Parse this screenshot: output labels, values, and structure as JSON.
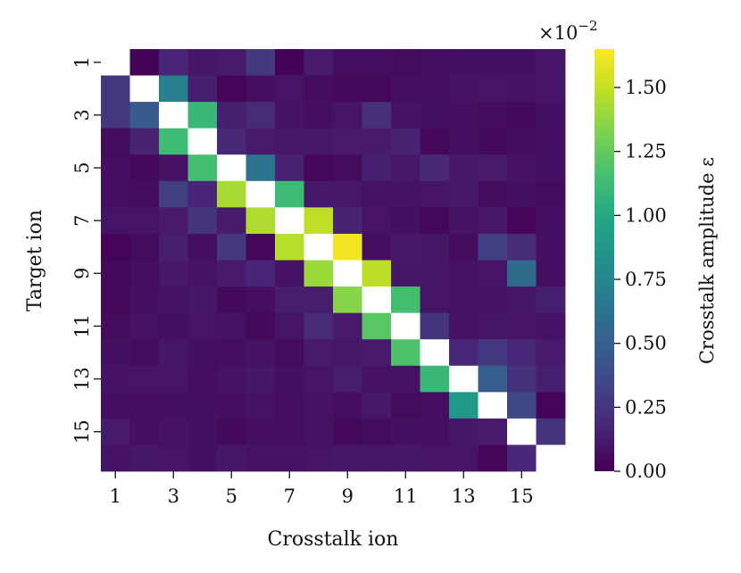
{
  "chart_data": {
    "type": "heatmap",
    "xlabel": "Crosstalk ion",
    "ylabel": "Target ion",
    "x_tick_labels": [
      "1",
      "3",
      "5",
      "7",
      "9",
      "11",
      "13",
      "15"
    ],
    "y_tick_labels": [
      "1",
      "3",
      "5",
      "7",
      "9",
      "11",
      "13",
      "15"
    ],
    "colorbar": {
      "label": "Crosstalk amplitude ε",
      "multiplier_base": "×10",
      "multiplier_exponent": "−2",
      "range": [
        0,
        1.65
      ],
      "colormap": "viridis",
      "ticks": [
        {
          "value": 0.0,
          "label": "0.00"
        },
        {
          "value": 0.25,
          "label": "0.25"
        },
        {
          "value": 0.5,
          "label": "0.50"
        },
        {
          "value": 0.75,
          "label": "0.75"
        },
        {
          "value": 1.0,
          "label": "1.00"
        },
        {
          "value": 1.25,
          "label": "1.25"
        },
        {
          "value": 1.5,
          "label": "1.50"
        }
      ]
    },
    "diagonal_masked": true,
    "masked_color": "#ffffff",
    "matrix": [
      [
        null,
        0.01,
        0.17,
        0.1,
        0.12,
        0.27,
        0.01,
        0.12,
        0.06,
        0.06,
        0.05,
        0.06,
        0.07,
        0.07,
        0.07,
        0.09
      ],
      [
        0.26,
        null,
        0.71,
        0.14,
        0.02,
        0.06,
        0.09,
        0.05,
        0.04,
        0.03,
        0.06,
        0.07,
        0.08,
        0.09,
        0.08,
        0.09
      ],
      [
        0.26,
        0.47,
        null,
        1.1,
        0.14,
        0.2,
        0.08,
        0.06,
        0.09,
        0.22,
        0.08,
        0.07,
        0.06,
        0.05,
        0.04,
        0.07
      ],
      [
        0.05,
        0.16,
        1.13,
        null,
        0.19,
        0.12,
        0.11,
        0.11,
        0.12,
        0.12,
        0.16,
        0.04,
        0.06,
        0.04,
        0.05,
        0.07
      ],
      [
        0.06,
        0.04,
        0.08,
        1.15,
        null,
        0.63,
        0.15,
        0.03,
        0.05,
        0.14,
        0.11,
        0.19,
        0.11,
        0.12,
        0.08,
        0.07
      ],
      [
        0.06,
        0.05,
        0.3,
        0.17,
        1.43,
        null,
        1.12,
        0.11,
        0.11,
        0.08,
        0.08,
        0.09,
        0.11,
        0.05,
        0.07,
        0.05
      ],
      [
        0.09,
        0.09,
        0.12,
        0.25,
        0.12,
        1.45,
        null,
        1.49,
        0.16,
        0.09,
        0.07,
        0.03,
        0.08,
        0.11,
        0.02,
        0.07
      ],
      [
        0.02,
        0.05,
        0.13,
        0.06,
        0.27,
        0.04,
        1.47,
        null,
        1.63,
        0.06,
        0.11,
        0.1,
        0.05,
        0.3,
        0.2,
        0.07
      ],
      [
        0.04,
        0.06,
        0.11,
        0.08,
        0.12,
        0.17,
        0.08,
        1.4,
        null,
        1.48,
        0.1,
        0.1,
        0.08,
        0.09,
        0.57,
        0.06
      ],
      [
        0.04,
        0.07,
        0.08,
        0.1,
        0.04,
        0.06,
        0.13,
        0.13,
        1.35,
        null,
        1.15,
        0.09,
        0.08,
        0.08,
        0.1,
        0.14
      ],
      [
        0.05,
        0.08,
        0.07,
        0.09,
        0.08,
        0.04,
        0.09,
        0.2,
        0.12,
        1.22,
        null,
        0.25,
        0.08,
        0.1,
        0.09,
        0.08
      ],
      [
        0.07,
        0.05,
        0.1,
        0.07,
        0.06,
        0.08,
        0.05,
        0.12,
        0.11,
        0.12,
        1.18,
        null,
        0.18,
        0.27,
        0.18,
        0.12
      ],
      [
        0.08,
        0.09,
        0.09,
        0.06,
        0.08,
        0.1,
        0.07,
        0.09,
        0.13,
        0.08,
        0.08,
        1.1,
        null,
        0.49,
        0.23,
        0.14
      ],
      [
        0.06,
        0.06,
        0.07,
        0.07,
        0.06,
        0.08,
        0.06,
        0.08,
        0.06,
        0.11,
        0.05,
        0.06,
        0.88,
        null,
        0.36,
        0.02
      ],
      [
        0.12,
        0.06,
        0.08,
        0.07,
        0.04,
        0.06,
        0.06,
        0.08,
        0.04,
        0.05,
        0.07,
        0.06,
        0.1,
        0.12,
        null,
        0.24
      ],
      [
        0.08,
        0.1,
        0.09,
        0.07,
        0.1,
        0.08,
        0.08,
        0.09,
        0.1,
        0.1,
        0.1,
        0.09,
        0.09,
        0.02,
        0.18,
        null
      ]
    ]
  }
}
